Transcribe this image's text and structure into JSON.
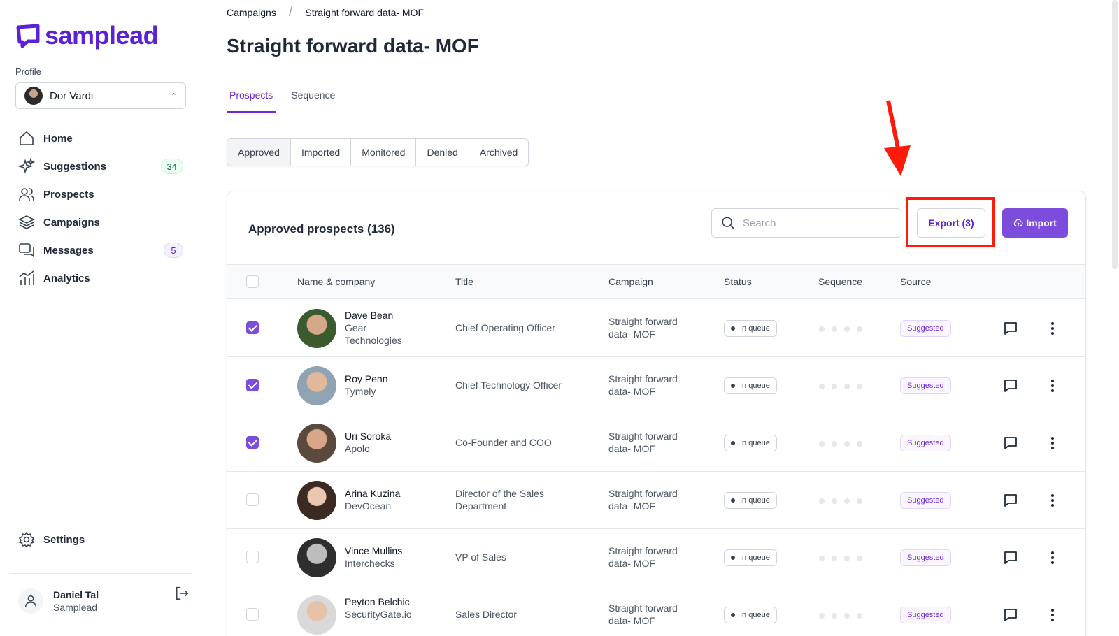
{
  "app": {
    "brand": "samplead"
  },
  "sidebar": {
    "profile_label": "Profile",
    "profile_name": "Dor Vardi",
    "items": [
      {
        "label": "Home",
        "icon": "home-icon"
      },
      {
        "label": "Suggestions",
        "icon": "sparkles-icon",
        "badge": "34"
      },
      {
        "label": "Prospects",
        "icon": "users-icon"
      },
      {
        "label": "Campaigns",
        "icon": "layers-icon"
      },
      {
        "label": "Messages",
        "icon": "chat-icon",
        "badge": "5"
      },
      {
        "label": "Analytics",
        "icon": "analytics-icon"
      }
    ],
    "settings_label": "Settings",
    "user": {
      "name": "Daniel Tal",
      "company": "Samplead"
    }
  },
  "breadcrumb": [
    "Campaigns",
    "Straight forward data- MOF"
  ],
  "page_title": "Straight forward data- MOF",
  "tabs": [
    "Prospects",
    "Sequence"
  ],
  "segments": [
    "Approved",
    "Imported",
    "Monitored",
    "Denied",
    "Archived"
  ],
  "card": {
    "title": "Approved prospects (136)",
    "search_placeholder": "Search",
    "export_label": "Export (3)",
    "import_label": "Import"
  },
  "table": {
    "columns": [
      "Name & company",
      "Title",
      "Campaign",
      "Status",
      "Sequence",
      "Source"
    ],
    "rows": [
      {
        "name": "Dave Bean",
        "company": "Gear Technologies",
        "title": "Chief Operating Officer",
        "campaign": "Straight forward data- MOF",
        "status": "In queue",
        "source": "Suggested",
        "checked": true
      },
      {
        "name": "Roy Penn",
        "company": "Tymely",
        "title": "Chief Technology Officer",
        "campaign": "Straight forward data- MOF",
        "status": "In queue",
        "source": "Suggested",
        "checked": true
      },
      {
        "name": "Uri Soroka",
        "company": "Apolo",
        "title": "Co-Founder and COO",
        "campaign": "Straight forward data- MOF",
        "status": "In queue",
        "source": "Suggested",
        "checked": true
      },
      {
        "name": "Arina Kuzina",
        "company": "DevOcean",
        "title": "Director of the Sales Department",
        "campaign": "Straight forward data- MOF",
        "status": "In queue",
        "source": "Suggested",
        "checked": false
      },
      {
        "name": "Vince Mullins",
        "company": "Interchecks",
        "title": "VP of Sales",
        "campaign": "Straight forward data- MOF",
        "status": "In queue",
        "source": "Suggested",
        "checked": false
      },
      {
        "name": "Peyton Belchic",
        "company": "SecurityGate.io",
        "title": "Sales Director",
        "campaign": "Straight forward data- MOF",
        "status": "In queue",
        "source": "Suggested",
        "checked": false
      }
    ]
  },
  "colors": {
    "brand": "#5b21d6",
    "accent": "#7c4ddc",
    "annotation": "#ff1a0a"
  }
}
